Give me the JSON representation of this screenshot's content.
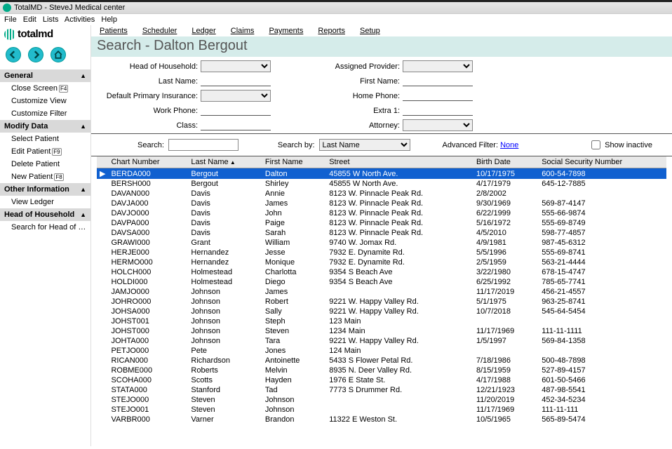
{
  "window": {
    "title": "TotalMD - SteveJ Medical center"
  },
  "menubar": [
    "File",
    "Edit",
    "Lists",
    "Activities",
    "Help"
  ],
  "logo": "totalmd",
  "topnav": [
    "Patients",
    "Scheduler",
    "Ledger",
    "Claims",
    "Payments",
    "Reports",
    "Setup"
  ],
  "page_title": "Search - Dalton Bergout",
  "filters_left": [
    {
      "label": "Head of Household:",
      "type": "select",
      "value": ""
    },
    {
      "label": "Last Name:",
      "type": "text",
      "value": ""
    },
    {
      "label": "Default Primary Insurance:",
      "type": "select",
      "value": ""
    },
    {
      "label": "Work Phone:",
      "type": "text",
      "value": ""
    },
    {
      "label": "Class:",
      "type": "text",
      "value": ""
    }
  ],
  "filters_right": [
    {
      "label": "Assigned Provider:",
      "type": "select",
      "value": ""
    },
    {
      "label": "First Name:",
      "type": "text",
      "value": ""
    },
    {
      "label": "Home Phone:",
      "type": "text",
      "value": ""
    },
    {
      "label": "Extra 1:",
      "type": "text",
      "value": ""
    },
    {
      "label": "Attorney:",
      "type": "select",
      "value": ""
    }
  ],
  "search": {
    "label": "Search:",
    "value": "",
    "by_label": "Search by:",
    "by_value": "Last Name",
    "adv_label": "Advanced Filter:",
    "adv_value": "None",
    "show_inactive": "Show inactive"
  },
  "columns": [
    "Chart Number",
    "Last Name",
    "First Name",
    "Street",
    "Birth Date",
    "Social Security Number"
  ],
  "sorted_col": 1,
  "rows": [
    {
      "sel": true,
      "c": [
        "BERDA000",
        "Bergout",
        "Dalton",
        "45855 W North Ave.",
        "10/17/1975",
        "600-54-7898"
      ]
    },
    {
      "c": [
        "BERSH000",
        "Bergout",
        "Shirley",
        "45855 W North Ave.",
        "4/17/1979",
        "645-12-7885"
      ]
    },
    {
      "c": [
        "DAVAN000",
        "Davis",
        "Annie",
        "8123 W. Pinnacle Peak Rd.",
        "2/8/2002",
        ""
      ]
    },
    {
      "c": [
        "DAVJA000",
        "Davis",
        "James",
        "8123 W. Pinnacle Peak Rd.",
        "9/30/1969",
        "569-87-4147"
      ]
    },
    {
      "c": [
        "DAVJO000",
        "Davis",
        "John",
        "8123 W. Pinnacle Peak Rd.",
        "6/22/1999",
        "555-66-9874"
      ]
    },
    {
      "c": [
        "DAVPA000",
        "Davis",
        "Paige",
        "8123 W. Pinnacle Peak Rd.",
        "5/16/1972",
        "555-69-8749"
      ]
    },
    {
      "c": [
        "DAVSA000",
        "Davis",
        "Sarah",
        "8123 W. Pinnacle Peak Rd.",
        "4/5/2010",
        "598-77-4857"
      ]
    },
    {
      "c": [
        "GRAWI000",
        "Grant",
        "William",
        "9740 W. Jomax Rd.",
        "4/9/1981",
        "987-45-6312"
      ]
    },
    {
      "c": [
        "HERJE000",
        "Hernandez",
        "Jesse",
        "7932 E. Dynamite Rd.",
        "5/5/1996",
        "555-69-8741"
      ]
    },
    {
      "c": [
        "HERMO000",
        "Hernandez",
        "Monique",
        "7932 E. Dynamite Rd.",
        "2/5/1959",
        "563-21-4444"
      ]
    },
    {
      "c": [
        "HOLCH000",
        "Holmestead",
        "Charlotta",
        "9354 S Beach Ave",
        "3/22/1980",
        "678-15-4747"
      ]
    },
    {
      "c": [
        "HOLDI000",
        "Holmestead",
        "Diego",
        "9354 S Beach Ave",
        "6/25/1992",
        "785-65-7741"
      ]
    },
    {
      "c": [
        "JAMJO000",
        "Johnson",
        "James",
        "",
        "11/17/2019",
        "456-21-4557"
      ]
    },
    {
      "c": [
        "JOHRO000",
        "Johnson",
        "Robert",
        "9221 W. Happy Valley Rd.",
        "5/1/1975",
        "963-25-8741"
      ]
    },
    {
      "c": [
        "JOHSA000",
        "Johnson",
        "Sally",
        "9221 W. Happy Valley Rd.",
        "10/7/2018",
        "545-64-5454"
      ]
    },
    {
      "c": [
        "JOHST001",
        "Johnson",
        "Steph",
        "123 Main",
        "",
        ""
      ]
    },
    {
      "c": [
        "JOHST000",
        "Johnson",
        "Steven",
        "1234 Main",
        "11/17/1969",
        "111-11-1111"
      ]
    },
    {
      "c": [
        "JOHTA000",
        "Johnson",
        "Tara",
        "9221 W. Happy Valley Rd.",
        "1/5/1997",
        "569-84-1358"
      ]
    },
    {
      "c": [
        "PETJO000",
        "Pete",
        "Jones",
        "124 Main",
        "",
        ""
      ]
    },
    {
      "c": [
        "RICAN000",
        "Richardson",
        "Antoinette",
        "5433 S Flower Petal Rd.",
        "7/18/1986",
        "500-48-7898"
      ]
    },
    {
      "c": [
        "ROBME000",
        "Roberts",
        "Melvin",
        "8935 N. Deer Valley Rd.",
        "8/15/1959",
        "527-89-4157"
      ]
    },
    {
      "c": [
        "SCOHA000",
        "Scotts",
        "Hayden",
        "1976 E State St.",
        "4/17/1988",
        "601-50-5466"
      ]
    },
    {
      "c": [
        "STATA000",
        "Stanford",
        "Tad",
        "7773 S Drummer Rd.",
        "12/21/1923",
        "487-98-5541"
      ]
    },
    {
      "c": [
        "STEJO000",
        "Steven",
        "Johnson",
        "",
        "11/20/2019",
        "452-34-5234"
      ]
    },
    {
      "c": [
        "STEJO001",
        "Steven",
        "Johnson",
        "",
        "11/17/1969",
        "111-11-111"
      ]
    },
    {
      "c": [
        "VARBR000",
        "Varner",
        "Brandon",
        "11322 E Weston St.",
        "10/5/1965",
        "565-89-5474"
      ]
    }
  ],
  "sidebar": {
    "general": {
      "title": "General",
      "items": [
        {
          "label": "Close Screen",
          "kbd": "F4"
        },
        {
          "label": "Customize View"
        },
        {
          "label": "Customize Filter"
        }
      ]
    },
    "modify": {
      "title": "Modify Data",
      "items": [
        {
          "label": "Select Patient"
        },
        {
          "label": "Edit Patient",
          "kbd": "F9"
        },
        {
          "label": "Delete Patient"
        },
        {
          "label": "New Patient",
          "kbd": "F8"
        }
      ]
    },
    "other": {
      "title": "Other Information",
      "items": [
        {
          "label": "View Ledger"
        }
      ]
    },
    "household": {
      "title": "Head of Household",
      "items": [
        {
          "label": "Search for Head of Hous..."
        }
      ]
    }
  }
}
